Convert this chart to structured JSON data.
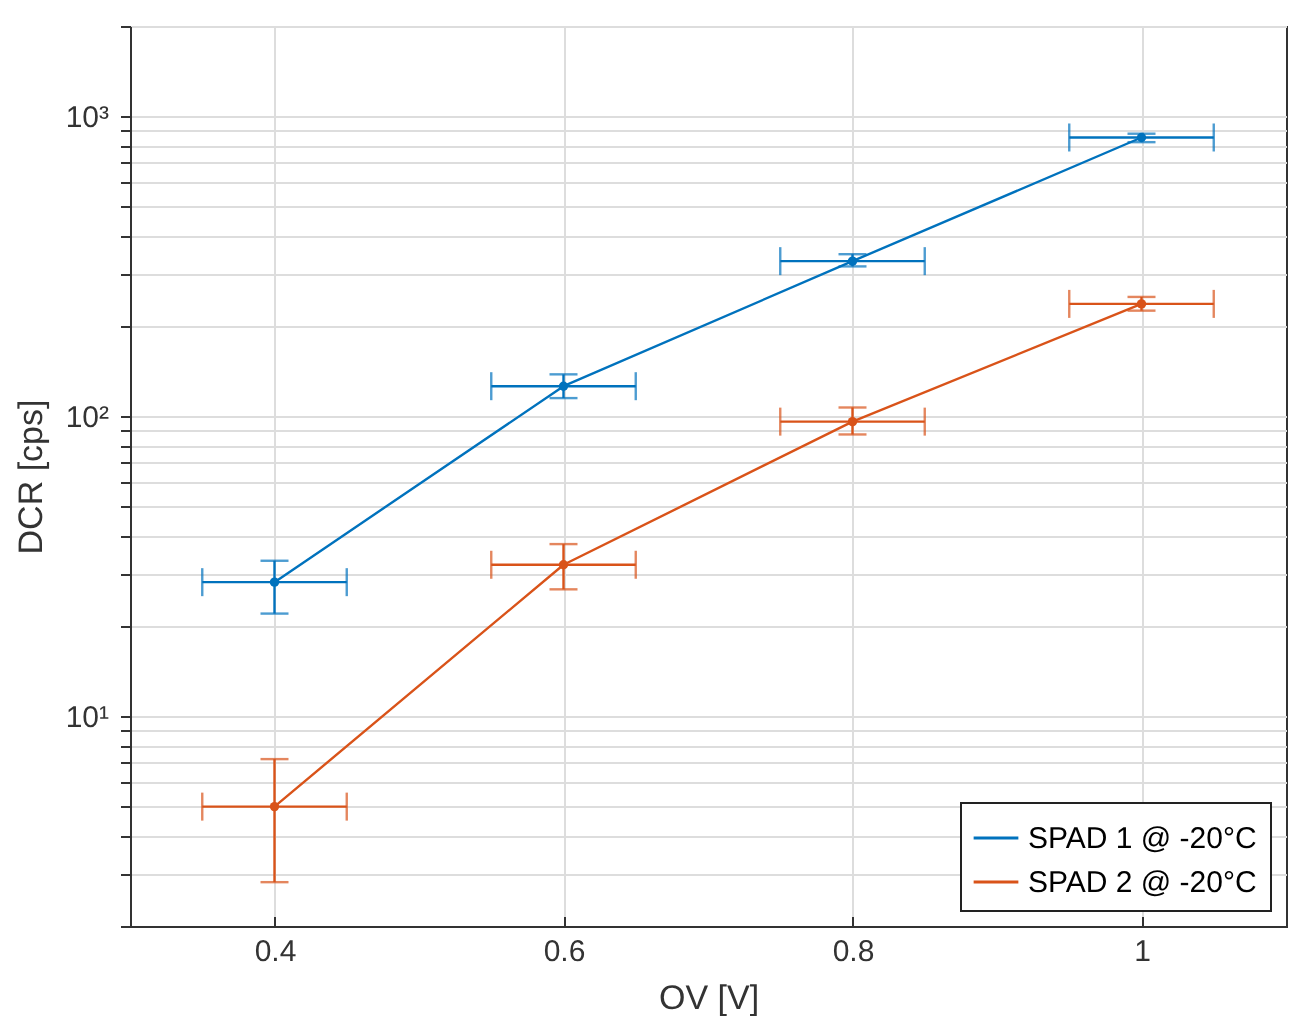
{
  "chart_data": {
    "type": "line",
    "xlabel": "OV [V]",
    "ylabel": "DCR [cps]",
    "x": [
      0.4,
      0.6,
      0.8,
      1
    ],
    "series": [
      {
        "name": "SPAD 1 @ -20°C",
        "color": "#0072bd",
        "values": [
          28,
          126,
          329,
          850
        ],
        "errors": [
          [
            22,
            33
          ],
          [
            115,
            138
          ],
          [
            316,
            347
          ],
          [
            820,
            875
          ]
        ],
        "xerrors": [
          0.05,
          0.05,
          0.05,
          0.05
        ]
      },
      {
        "name": "SPAD 2 @ -20°C",
        "color": "#d95319",
        "values": [
          5,
          32,
          96,
          237
        ],
        "errors": [
          [
            2.8,
            7.2
          ],
          [
            26.5,
            37.5
          ],
          [
            87,
            107
          ],
          [
            225,
            250
          ]
        ],
        "xerrors": [
          0.05,
          0.05,
          0.05,
          0.05
        ]
      }
    ],
    "xlim": [
      0.3,
      1.1
    ],
    "xticks": [
      0.4,
      0.6,
      0.8,
      1
    ],
    "ylim": [
      2,
      2000
    ],
    "log": true,
    "yticks": [
      {
        "value": 2,
        "label": null
      },
      {
        "value": 3,
        "label": null
      },
      {
        "value": 4,
        "label": null
      },
      {
        "value": 5,
        "label": null
      },
      {
        "value": 6,
        "label": null
      },
      {
        "value": 7,
        "label": null
      },
      {
        "value": 8,
        "label": null
      },
      {
        "value": 9,
        "label": null
      },
      {
        "value": 10,
        "label": "10¹"
      },
      {
        "value": 20,
        "label": null
      },
      {
        "value": 30,
        "label": null
      },
      {
        "value": 40,
        "label": null
      },
      {
        "value": 50,
        "label": null
      },
      {
        "value": 60,
        "label": null
      },
      {
        "value": 70,
        "label": null
      },
      {
        "value": 80,
        "label": null
      },
      {
        "value": 90,
        "label": null
      },
      {
        "value": 100,
        "label": "10²"
      },
      {
        "value": 200,
        "label": null
      },
      {
        "value": 300,
        "label": null
      },
      {
        "value": 400,
        "label": null
      },
      {
        "value": 500,
        "label": null
      },
      {
        "value": 600,
        "label": null
      },
      {
        "value": 700,
        "label": null
      },
      {
        "value": 800,
        "label": null
      },
      {
        "value": 900,
        "label": null
      },
      {
        "value": 1000,
        "label": "10³"
      },
      {
        "value": 2000,
        "label": null
      }
    ],
    "grid": true,
    "legend": "bottom right",
    "marker": "circle",
    "line_style": "solid"
  }
}
